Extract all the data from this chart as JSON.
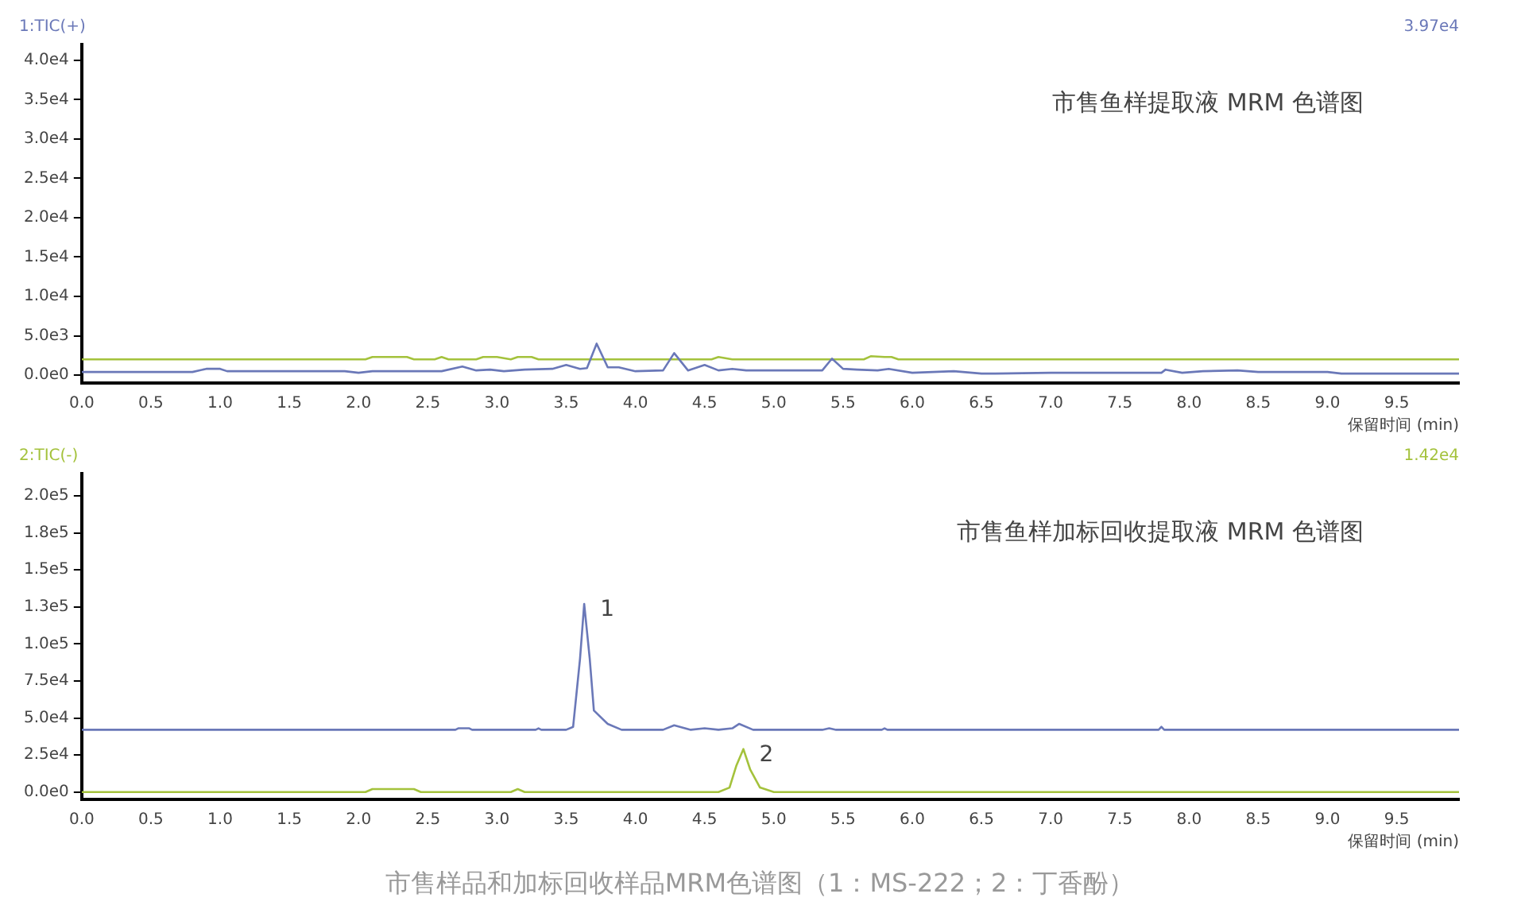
{
  "chart_data": [
    {
      "type": "line",
      "title": "市售鱼样提取液 MRM 色谱图",
      "subtitle": "1:TIC(+)",
      "xlabel": "保留时间 (min)",
      "annotations": [
        "3.97e4"
      ],
      "grid": false,
      "legend": false,
      "marker": "none",
      "line_style": "solid",
      "xlim": [
        0,
        9.95
      ],
      "xticks": [
        {
          "value": 0,
          "label": "0.0"
        },
        {
          "value": 0.5,
          "label": "0.5"
        },
        {
          "value": 1,
          "label": "1.0"
        },
        {
          "value": 1.5,
          "label": "1.5"
        },
        {
          "value": 2,
          "label": "2.0"
        },
        {
          "value": 2.5,
          "label": "2.5"
        },
        {
          "value": 3,
          "label": "3.0"
        },
        {
          "value": 3.5,
          "label": "3.5"
        },
        {
          "value": 4,
          "label": "4.0"
        },
        {
          "value": 4.5,
          "label": "4.5"
        },
        {
          "value": 5,
          "label": "5.0"
        },
        {
          "value": 5.5,
          "label": "5.5"
        },
        {
          "value": 6,
          "label": "6.0"
        },
        {
          "value": 6.5,
          "label": "6.5"
        },
        {
          "value": 7,
          "label": "7.0"
        },
        {
          "value": 7.5,
          "label": "7.5"
        },
        {
          "value": 8,
          "label": "8.0"
        },
        {
          "value": 8.5,
          "label": "8.5"
        },
        {
          "value": 9,
          "label": "9.0"
        },
        {
          "value": 9.5,
          "label": "9.5"
        }
      ],
      "ylim": [
        -1000,
        42000
      ],
      "yticks": [
        {
          "value": 0,
          "label": "0.0e0"
        },
        {
          "value": 5000,
          "label": "5.0e3"
        },
        {
          "value": 10000,
          "label": "1.0e4"
        },
        {
          "value": 15000,
          "label": "1.5e4"
        },
        {
          "value": 20000,
          "label": "2.0e4"
        },
        {
          "value": 25000,
          "label": "2.5e4"
        },
        {
          "value": 30000,
          "label": "3.0e4"
        },
        {
          "value": 35000,
          "label": "3.5e4"
        },
        {
          "value": 40000,
          "label": "4.0e4"
        }
      ],
      "series": [
        {
          "color": "#6a78b8",
          "x": [
            0,
            0.8,
            0.9,
            1.0,
            1.05,
            1.9,
            2.0,
            2.1,
            2.6,
            2.75,
            2.85,
            2.95,
            3.05,
            3.2,
            3.4,
            3.5,
            3.6,
            3.65,
            3.72,
            3.8,
            3.88,
            4.0,
            4.2,
            4.28,
            4.38,
            4.5,
            4.6,
            4.7,
            4.8,
            5.0,
            5.35,
            5.42,
            5.5,
            5.6,
            5.75,
            5.83,
            6.0,
            6.3,
            6.5,
            6.6,
            7.0,
            7.8,
            7.83,
            7.95,
            8.1,
            8.35,
            8.5,
            9.0,
            9.1,
            9.95
          ],
          "values": [
            400,
            400,
            800,
            800,
            500,
            500,
            300,
            500,
            500,
            1100,
            600,
            700,
            500,
            700,
            800,
            1300,
            800,
            900,
            4000,
            1000,
            1000,
            500,
            600,
            2800,
            600,
            1300,
            600,
            800,
            600,
            600,
            600,
            2100,
            800,
            700,
            600,
            800,
            300,
            500,
            200,
            200,
            300,
            300,
            700,
            300,
            500,
            600,
            400,
            400,
            200,
            200
          ]
        },
        {
          "color": "#a4c23c",
          "x": [
            0,
            2.05,
            2.1,
            2.15,
            2.35,
            2.4,
            2.55,
            2.6,
            2.65,
            2.85,
            2.9,
            3.0,
            3.1,
            3.15,
            3.25,
            3.3,
            4.55,
            4.6,
            4.7,
            5.65,
            5.7,
            5.8,
            5.85,
            5.9,
            9.95
          ],
          "values": [
            2000,
            2000,
            2300,
            2300,
            2300,
            2000,
            2000,
            2300,
            2000,
            2000,
            2300,
            2300,
            2000,
            2300,
            2300,
            2000,
            2000,
            2300,
            2000,
            2000,
            2400,
            2300,
            2300,
            2000,
            2000
          ]
        }
      ]
    },
    {
      "type": "line",
      "title": "市售鱼样加标回收提取液 MRM 色谱图",
      "subtitle": "2:TIC(-)",
      "xlabel": "保留时间 (min)",
      "annotations": [
        "1.42e4",
        "市售样品和加标回收样品MRM色谱图（1：MS-222；2：丁香酚）",
        {
          "text": "1",
          "x": 3.63,
          "y": 127000
        },
        {
          "text": "2",
          "x": 4.78,
          "y": 29000
        }
      ],
      "grid": false,
      "legend": false,
      "marker": "none",
      "line_style": "solid",
      "xlim": [
        0,
        9.95
      ],
      "xticks": [
        {
          "value": 0,
          "label": "0.0"
        },
        {
          "value": 0.5,
          "label": "0.5"
        },
        {
          "value": 1,
          "label": "1.0"
        },
        {
          "value": 1.5,
          "label": "1.5"
        },
        {
          "value": 2,
          "label": "2.0"
        },
        {
          "value": 2.5,
          "label": "2.5"
        },
        {
          "value": 3,
          "label": "3.0"
        },
        {
          "value": 3.5,
          "label": "3.5"
        },
        {
          "value": 4,
          "label": "4.0"
        },
        {
          "value": 4.5,
          "label": "4.5"
        },
        {
          "value": 5,
          "label": "5.0"
        },
        {
          "value": 5.5,
          "label": "5.5"
        },
        {
          "value": 6,
          "label": "6.0"
        },
        {
          "value": 6.5,
          "label": "6.5"
        },
        {
          "value": 7,
          "label": "7.0"
        },
        {
          "value": 7.5,
          "label": "7.5"
        },
        {
          "value": 8,
          "label": "8.0"
        },
        {
          "value": 8.5,
          "label": "8.5"
        },
        {
          "value": 9,
          "label": "9.0"
        },
        {
          "value": 9.5,
          "label": "9.5"
        }
      ],
      "ylim": [
        -5000,
        215000
      ],
      "yticks": [
        {
          "value": 0,
          "label": "0.0e0"
        },
        {
          "value": 25000,
          "label": "2.5e4"
        },
        {
          "value": 50000,
          "label": "5.0e4"
        },
        {
          "value": 75000,
          "label": "7.5e4"
        },
        {
          "value": 100000,
          "label": "1.0e5"
        },
        {
          "value": 125000,
          "label": "1.3e5"
        },
        {
          "value": 150000,
          "label": "1.5e5"
        },
        {
          "value": 175000,
          "label": "1.8e5"
        },
        {
          "value": 200000,
          "label": "2.0e5"
        }
      ],
      "series": [
        {
          "color": "#6a78b8",
          "x": [
            0,
            2.7,
            2.72,
            2.8,
            2.82,
            3.28,
            3.3,
            3.32,
            3.5,
            3.55,
            3.6,
            3.63,
            3.67,
            3.7,
            3.8,
            3.9,
            4.2,
            4.28,
            4.4,
            4.5,
            4.6,
            4.7,
            4.75,
            4.85,
            5.35,
            5.4,
            5.45,
            5.78,
            5.8,
            5.82,
            7.78,
            7.8,
            7.82,
            9.95
          ],
          "values": [
            42000,
            42000,
            43000,
            43000,
            42000,
            42000,
            43000,
            42000,
            42000,
            44000,
            90000,
            127000,
            90000,
            55000,
            46000,
            42000,
            42000,
            45000,
            42000,
            43000,
            42000,
            43000,
            46000,
            42000,
            42000,
            43000,
            42000,
            42000,
            43000,
            42000,
            42000,
            44000,
            42000,
            42000
          ]
        },
        {
          "color": "#a4c23c",
          "x": [
            0,
            2.05,
            2.1,
            2.4,
            2.45,
            3.1,
            3.15,
            3.2,
            4.6,
            4.68,
            4.73,
            4.78,
            4.83,
            4.9,
            5.0,
            9.95
          ],
          "values": [
            0,
            0,
            2000,
            2000,
            0,
            0,
            2000,
            0,
            0,
            3000,
            18000,
            29000,
            15000,
            3000,
            0,
            0
          ]
        }
      ]
    }
  ]
}
